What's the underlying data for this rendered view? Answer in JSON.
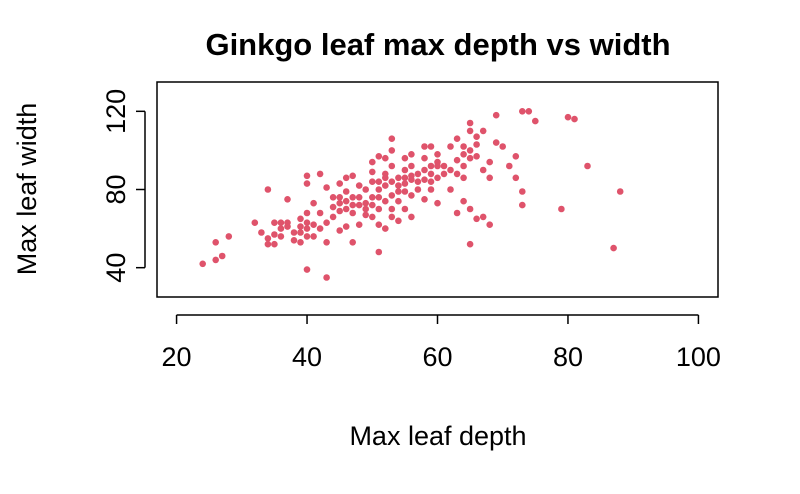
{
  "chart_data": {
    "type": "scatter",
    "title": "Ginkgo leaf max depth vs width",
    "xlabel": "Max leaf depth",
    "ylabel": "Max leaf width",
    "xlim": [
      17,
      103
    ],
    "ylim": [
      25,
      135
    ],
    "xticks": [
      20,
      40,
      60,
      80,
      100
    ],
    "yticks": [
      40,
      80,
      120
    ],
    "grid": false,
    "point_color": "#DF536B",
    "points": [
      [
        24,
        42
      ],
      [
        26,
        44
      ],
      [
        26,
        53
      ],
      [
        27,
        46
      ],
      [
        28,
        56
      ],
      [
        32,
        63
      ],
      [
        33,
        58
      ],
      [
        34,
        55
      ],
      [
        34,
        52
      ],
      [
        34,
        80
      ],
      [
        35,
        57
      ],
      [
        35,
        52
      ],
      [
        35,
        63
      ],
      [
        36,
        60
      ],
      [
        36,
        63
      ],
      [
        36,
        56
      ],
      [
        37,
        63
      ],
      [
        37,
        61
      ],
      [
        37,
        75
      ],
      [
        38,
        58
      ],
      [
        38,
        54
      ],
      [
        39,
        65
      ],
      [
        39,
        61
      ],
      [
        39,
        58
      ],
      [
        39,
        53
      ],
      [
        40,
        60
      ],
      [
        40,
        56
      ],
      [
        40,
        63
      ],
      [
        40,
        68
      ],
      [
        40,
        83
      ],
      [
        40,
        87
      ],
      [
        40,
        39
      ],
      [
        41,
        62
      ],
      [
        41,
        56
      ],
      [
        41,
        73
      ],
      [
        42,
        60
      ],
      [
        42,
        68
      ],
      [
        42,
        88
      ],
      [
        43,
        63
      ],
      [
        43,
        53
      ],
      [
        43,
        35
      ],
      [
        43,
        81
      ],
      [
        44,
        76
      ],
      [
        44,
        71
      ],
      [
        44,
        66
      ],
      [
        45,
        73
      ],
      [
        45,
        76
      ],
      [
        45,
        69
      ],
      [
        45,
        59
      ],
      [
        45,
        83
      ],
      [
        46,
        70
      ],
      [
        46,
        74
      ],
      [
        46,
        86
      ],
      [
        46,
        79
      ],
      [
        46,
        61
      ],
      [
        47,
        68
      ],
      [
        47,
        72
      ],
      [
        47,
        76
      ],
      [
        47,
        87
      ],
      [
        47,
        53
      ],
      [
        48,
        72
      ],
      [
        48,
        76
      ],
      [
        48,
        82
      ],
      [
        48,
        62
      ],
      [
        49,
        73
      ],
      [
        49,
        70
      ],
      [
        49,
        80
      ],
      [
        49,
        67
      ],
      [
        50,
        72
      ],
      [
        50,
        76
      ],
      [
        50,
        84
      ],
      [
        50,
        66
      ],
      [
        50,
        89
      ],
      [
        50,
        94
      ],
      [
        51,
        70
      ],
      [
        51,
        76
      ],
      [
        51,
        80
      ],
      [
        51,
        62
      ],
      [
        51,
        84
      ],
      [
        51,
        97
      ],
      [
        51,
        48
      ],
      [
        52,
        74
      ],
      [
        52,
        86
      ],
      [
        52,
        96
      ],
      [
        52,
        60
      ],
      [
        52,
        88
      ],
      [
        52,
        82
      ],
      [
        53,
        77
      ],
      [
        53,
        70
      ],
      [
        53,
        84
      ],
      [
        53,
        92
      ],
      [
        53,
        100
      ],
      [
        53,
        106
      ],
      [
        53,
        66
      ],
      [
        54,
        82
      ],
      [
        54,
        86
      ],
      [
        54,
        74
      ],
      [
        54,
        64
      ],
      [
        54,
        79
      ],
      [
        55,
        83
      ],
      [
        55,
        90
      ],
      [
        55,
        79
      ],
      [
        55,
        86
      ],
      [
        55,
        70
      ],
      [
        55,
        96
      ],
      [
        56,
        85
      ],
      [
        56,
        77
      ],
      [
        56,
        87
      ],
      [
        56,
        92
      ],
      [
        56,
        66
      ],
      [
        56,
        98
      ],
      [
        57,
        84
      ],
      [
        57,
        88
      ],
      [
        57,
        80
      ],
      [
        58,
        90
      ],
      [
        58,
        96
      ],
      [
        58,
        102
      ],
      [
        58,
        75
      ],
      [
        58,
        85
      ],
      [
        59,
        92
      ],
      [
        59,
        84
      ],
      [
        59,
        80
      ],
      [
        59,
        88
      ],
      [
        59,
        102
      ],
      [
        60,
        98
      ],
      [
        60,
        94
      ],
      [
        60,
        86
      ],
      [
        60,
        73
      ],
      [
        60,
        92
      ],
      [
        61,
        88
      ],
      [
        61,
        92
      ],
      [
        62,
        102
      ],
      [
        62,
        90
      ],
      [
        62,
        80
      ],
      [
        63,
        95
      ],
      [
        63,
        88
      ],
      [
        63,
        106
      ],
      [
        63,
        68
      ],
      [
        64,
        92
      ],
      [
        64,
        98
      ],
      [
        64,
        86
      ],
      [
        64,
        74
      ],
      [
        64,
        102
      ],
      [
        65,
        100
      ],
      [
        65,
        110
      ],
      [
        65,
        96
      ],
      [
        65,
        52
      ],
      [
        65,
        70
      ],
      [
        65,
        114
      ],
      [
        66,
        107
      ],
      [
        66,
        97
      ],
      [
        66,
        65
      ],
      [
        66,
        103
      ],
      [
        67,
        110
      ],
      [
        67,
        90
      ],
      [
        67,
        66
      ],
      [
        68,
        94
      ],
      [
        68,
        86
      ],
      [
        68,
        62
      ],
      [
        69,
        118
      ],
      [
        69,
        104
      ],
      [
        70,
        102
      ],
      [
        71,
        92
      ],
      [
        72,
        97
      ],
      [
        72,
        86
      ],
      [
        73,
        120
      ],
      [
        73,
        79
      ],
      [
        73,
        72
      ],
      [
        74,
        120
      ],
      [
        75,
        115
      ],
      [
        79,
        70
      ],
      [
        80,
        117
      ],
      [
        81,
        116
      ],
      [
        83,
        92
      ],
      [
        87,
        50
      ],
      [
        88,
        79
      ]
    ]
  }
}
